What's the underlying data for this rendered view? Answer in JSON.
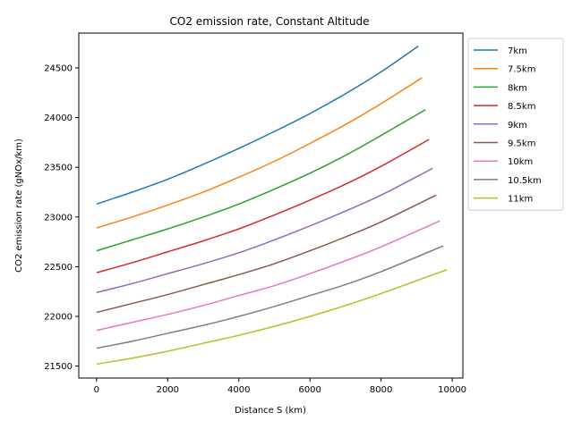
{
  "chart_data": {
    "type": "line",
    "title": "CO2 emission rate, Constant Altitude",
    "xlabel": "Distance S (km)",
    "ylabel": "CO2 emission rate (gNOx/km)",
    "xlim": [
      -500,
      10300
    ],
    "ylim": [
      21380,
      24850
    ],
    "xticks": [
      0,
      2000,
      4000,
      6000,
      8000,
      10000
    ],
    "yticks": [
      21500,
      22000,
      22500,
      23000,
      23500,
      24000,
      24500
    ],
    "grid": false,
    "legend_position": "outside-right",
    "series": [
      {
        "name": "7km",
        "color": "#1f77b4",
        "x": [
          0,
          1000,
          2000,
          3000,
          4000,
          5000,
          6000,
          7000,
          8000,
          9050
        ],
        "y": [
          23130,
          23250,
          23380,
          23530,
          23690,
          23860,
          24040,
          24240,
          24460,
          24720
        ]
      },
      {
        "name": "7.5km",
        "color": "#ff7f0e",
        "x": [
          0,
          1000,
          2000,
          3000,
          4000,
          5000,
          6000,
          7000,
          8000,
          9150
        ],
        "y": [
          22890,
          23000,
          23120,
          23250,
          23400,
          23560,
          23740,
          23930,
          24140,
          24400
        ]
      },
      {
        "name": "8km",
        "color": "#2ca02c",
        "x": [
          0,
          1000,
          2000,
          3000,
          4000,
          5000,
          6000,
          7000,
          8000,
          9250
        ],
        "y": [
          22660,
          22770,
          22880,
          23000,
          23130,
          23280,
          23440,
          23620,
          23820,
          24080
        ]
      },
      {
        "name": "8.5km",
        "color": "#d62728",
        "x": [
          0,
          1000,
          2000,
          3000,
          4000,
          5000,
          6000,
          7000,
          8000,
          9350
        ],
        "y": [
          22440,
          22540,
          22650,
          22760,
          22880,
          23020,
          23170,
          23330,
          23510,
          23780
        ]
      },
      {
        "name": "9km",
        "color": "#9467bd",
        "x": [
          0,
          1000,
          2000,
          3000,
          4000,
          5000,
          6000,
          7000,
          8000,
          9450
        ],
        "y": [
          22240,
          22330,
          22430,
          22530,
          22640,
          22770,
          22910,
          23060,
          23220,
          23490
        ]
      },
      {
        "name": "9.5km",
        "color": "#8c564b",
        "x": [
          0,
          1000,
          2000,
          3000,
          4000,
          5000,
          6000,
          7000,
          8000,
          9550
        ],
        "y": [
          22040,
          22130,
          22220,
          22320,
          22420,
          22530,
          22660,
          22800,
          22950,
          23220
        ]
      },
      {
        "name": "10km",
        "color": "#e377c2",
        "x": [
          0,
          1000,
          2000,
          3000,
          4000,
          5000,
          6000,
          7000,
          8000,
          9650
        ],
        "y": [
          21860,
          21940,
          22020,
          22110,
          22210,
          22310,
          22430,
          22560,
          22700,
          22960
        ]
      },
      {
        "name": "10.5km",
        "color": "#7f7f7f",
        "x": [
          0,
          1000,
          2000,
          3000,
          4000,
          5000,
          6000,
          7000,
          8000,
          9750
        ],
        "y": [
          21680,
          21750,
          21830,
          21910,
          22000,
          22100,
          22210,
          22320,
          22450,
          22710
        ]
      },
      {
        "name": "11km",
        "color": "#bcbd22",
        "x": [
          0,
          1000,
          2000,
          3000,
          4000,
          5000,
          6000,
          7000,
          8000,
          9850
        ],
        "y": [
          21520,
          21580,
          21650,
          21730,
          21810,
          21900,
          22000,
          22110,
          22230,
          22470
        ]
      }
    ]
  }
}
